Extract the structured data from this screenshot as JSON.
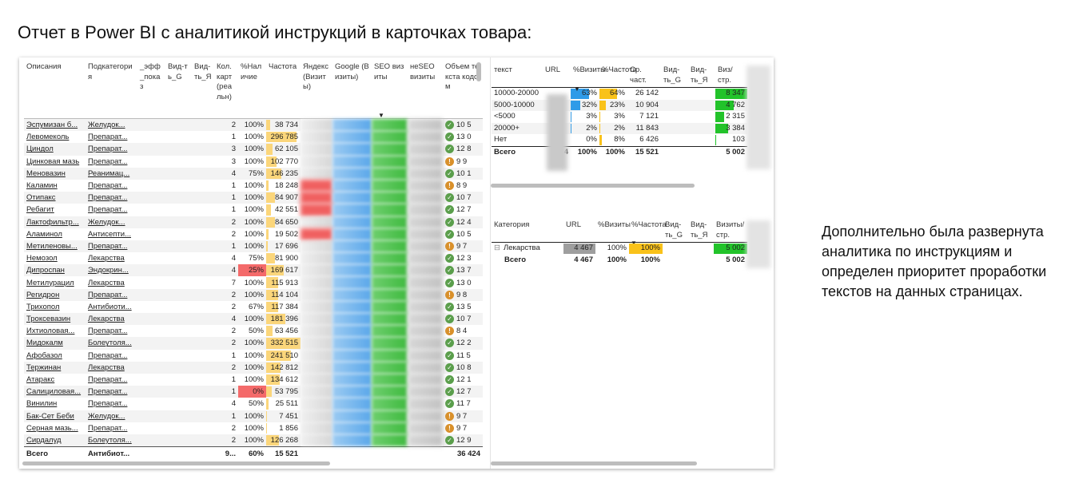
{
  "slide_title": "Отчет в Power BI с аналитикой инструкций в карточках товара:",
  "side_text": "Дополнительно была развернута аналитика по инструкциям и определен приоритет проработки текстов на данных страницах.",
  "main_table": {
    "columns": [
      "Описания",
      "Подкатегория",
      "_эфф_показ",
      "Вид-ть_G",
      "Вид-ть_Я",
      "Кол. карт (реальн)",
      "%Наличие",
      "Частота",
      "Яндекс (Визиты)",
      "Google (Визиты)",
      "SEO визиты",
      "неSEO визиты",
      "Объем текста кодом"
    ],
    "rows": [
      {
        "name": "Эспумизан б...",
        "sub": "Желудок...",
        "cnt": "2",
        "pct": "100%",
        "freq": "38 734",
        "freq_share": 0.12,
        "icon": "ok",
        "vol": "10 5"
      },
      {
        "name": "Левомеколь",
        "sub": "Препарат...",
        "cnt": "1",
        "pct": "100%",
        "freq": "296 785",
        "freq_share": 0.89,
        "icon": "ok",
        "vol": "13 0"
      },
      {
        "name": "Циндол",
        "sub": "Препарат...",
        "cnt": "3",
        "pct": "100%",
        "freq": "62 105",
        "freq_share": 0.19,
        "icon": "ok",
        "vol": "12 8"
      },
      {
        "name": "Цинковая мазь",
        "sub": "Препарат...",
        "cnt": "3",
        "pct": "100%",
        "freq": "102 770",
        "freq_share": 0.31,
        "icon": "warn",
        "vol": "9 9"
      },
      {
        "name": "Меновазин",
        "sub": "Реанимац...",
        "cnt": "4",
        "pct": "75%",
        "freq": "146 235",
        "freq_share": 0.44,
        "icon": "ok",
        "vol": "10 1"
      },
      {
        "name": "Каламин",
        "sub": "Препарат...",
        "cnt": "1",
        "pct": "100%",
        "freq": "18 248",
        "freq_share": 0.06,
        "icon": "warn",
        "vol": "8 9"
      },
      {
        "name": "Отипакс",
        "sub": "Препарат...",
        "cnt": "1",
        "pct": "100%",
        "freq": "84 907",
        "freq_share": 0.26,
        "icon": "ok",
        "vol": "10 7"
      },
      {
        "name": "Ребагит",
        "sub": "Препарат...",
        "cnt": "1",
        "pct": "100%",
        "freq": "42 551",
        "freq_share": 0.13,
        "icon": "ok",
        "vol": "12 7"
      },
      {
        "name": "Лактофильтр...",
        "sub": "Желудок...",
        "cnt": "2",
        "pct": "100%",
        "freq": "84 650",
        "freq_share": 0.26,
        "icon": "ok",
        "vol": "12 4"
      },
      {
        "name": "Аламинол",
        "sub": "Антисепти...",
        "cnt": "2",
        "pct": "100%",
        "freq": "19 502",
        "freq_share": 0.06,
        "icon": "ok",
        "vol": "10 5"
      },
      {
        "name": "Метиленовы...",
        "sub": "Препарат...",
        "cnt": "1",
        "pct": "100%",
        "freq": "17 696",
        "freq_share": 0.05,
        "icon": "warn",
        "vol": "9 7"
      },
      {
        "name": "Немозол",
        "sub": "Лекарства",
        "cnt": "4",
        "pct": "75%",
        "freq": "81 900",
        "freq_share": 0.25,
        "icon": "ok",
        "vol": "12 3"
      },
      {
        "name": "Дипроспан",
        "sub": "Эндокрин...",
        "cnt": "4",
        "pct": "25%",
        "freq": "169 617",
        "freq_share": 0.51,
        "icon": "ok",
        "vol": "13 7",
        "pct_red": true
      },
      {
        "name": "Метилурацил",
        "sub": "Лекарства",
        "cnt": "7",
        "pct": "100%",
        "freq": "115 913",
        "freq_share": 0.35,
        "icon": "ok",
        "vol": "13 0"
      },
      {
        "name": "Регидрон",
        "sub": "Препарат...",
        "cnt": "2",
        "pct": "100%",
        "freq": "114 104",
        "freq_share": 0.34,
        "icon": "warn",
        "vol": "9 8"
      },
      {
        "name": "Трихопол",
        "sub": "Антибиоти...",
        "cnt": "2",
        "pct": "67%",
        "freq": "117 384",
        "freq_share": 0.35,
        "icon": "ok",
        "vol": "13 5"
      },
      {
        "name": "Троксевазин",
        "sub": "Лекарства",
        "cnt": "4",
        "pct": "100%",
        "freq": "181 396",
        "freq_share": 0.55,
        "icon": "ok",
        "vol": "10 7"
      },
      {
        "name": "Ихтиоловая...",
        "sub": "Препарат...",
        "cnt": "2",
        "pct": "50%",
        "freq": "63 456",
        "freq_share": 0.19,
        "icon": "warn",
        "vol": "8 4"
      },
      {
        "name": "Мидокалм",
        "sub": "Болеутоля...",
        "cnt": "2",
        "pct": "100%",
        "freq": "332 515",
        "freq_share": 1.0,
        "icon": "ok",
        "vol": "12 2"
      },
      {
        "name": "Афобазол",
        "sub": "Препарат...",
        "cnt": "1",
        "pct": "100%",
        "freq": "241 510",
        "freq_share": 0.73,
        "icon": "ok",
        "vol": "11 5"
      },
      {
        "name": "Тержинан",
        "sub": "Лекарства",
        "cnt": "2",
        "pct": "100%",
        "freq": "142 812",
        "freq_share": 0.43,
        "icon": "ok",
        "vol": "10 8"
      },
      {
        "name": "Атаракс",
        "sub": "Препарат...",
        "cnt": "1",
        "pct": "100%",
        "freq": "134 612",
        "freq_share": 0.4,
        "icon": "ok",
        "vol": "12 1"
      },
      {
        "name": "Салициловая...",
        "sub": "Препарат...",
        "cnt": "1",
        "pct": "0%",
        "freq": "53 795",
        "freq_share": 0.16,
        "icon": "ok",
        "vol": "12 7",
        "pct_red": true
      },
      {
        "name": "Винилин",
        "sub": "Препарат...",
        "cnt": "4",
        "pct": "50%",
        "freq": "25 511",
        "freq_share": 0.08,
        "icon": "ok",
        "vol": "11 7"
      },
      {
        "name": "Бак-Сет Беби",
        "sub": "Желудок...",
        "cnt": "1",
        "pct": "100%",
        "freq": "7 451",
        "freq_share": 0.02,
        "icon": "warn",
        "vol": "9 7"
      },
      {
        "name": "Серная мазь...",
        "sub": "Препарат...",
        "cnt": "2",
        "pct": "100%",
        "freq": "1 856",
        "freq_share": 0.01,
        "icon": "warn",
        "vol": "9 7"
      },
      {
        "name": "Сирдалуд",
        "sub": "Болеутоля...",
        "cnt": "2",
        "pct": "100%",
        "freq": "126 268",
        "freq_share": 0.38,
        "icon": "ok",
        "vol": "12 9"
      }
    ],
    "total": {
      "name": "Всего",
      "sub": "Антибиот...",
      "cnt": "9...",
      "pct": "60%",
      "freq": "15 521",
      "vol": "36 424"
    }
  },
  "text_table": {
    "columns": [
      "текст",
      "URL",
      "%Визиты",
      "%Частота",
      "Ср. част.",
      "Вид-ть_G",
      "Вид-ть_Я",
      "Виз/стр."
    ],
    "rows": [
      {
        "label": "10000-20000",
        "visits": "63%",
        "visits_share": 0.63,
        "freq": "64%",
        "freq_share": 0.64,
        "avg": "26 142",
        "perpage": "8 347",
        "perpage_share": 1.0
      },
      {
        "label": "5000-10000",
        "visits": "32%",
        "visits_share": 0.32,
        "freq": "23%",
        "freq_share": 0.23,
        "avg": "10 904",
        "perpage": "4 762",
        "perpage_share": 0.57
      },
      {
        "label": "<5000",
        "visits": "3%",
        "visits_share": 0.03,
        "freq": "3%",
        "freq_share": 0.03,
        "avg": "7 121",
        "perpage": "2 315",
        "perpage_share": 0.28
      },
      {
        "label": "20000+",
        "visits": "2%",
        "visits_share": 0.02,
        "freq": "2%",
        "freq_share": 0.02,
        "avg": "11 843",
        "perpage": "3 384",
        "perpage_share": 0.41
      },
      {
        "label": "Нет",
        "visits": "0%",
        "visits_share": 0.0,
        "freq": "8%",
        "freq_share": 0.08,
        "avg": "6 426",
        "perpage": "103",
        "perpage_share": 0.01
      }
    ],
    "total": {
      "label": "Всего",
      "url": "4",
      "visits": "100%",
      "freq": "100%",
      "avg": "15 521",
      "perpage": "5 002"
    }
  },
  "category_table": {
    "columns": [
      "Категория",
      "URL",
      "%Визиты",
      "%Частота",
      "Вид-ть_G",
      "Вид-ть_Я",
      "Визиты/стр."
    ],
    "rows": [
      {
        "label": "Лекарства",
        "expand": "⊟",
        "url": "4 467",
        "visits": "100%",
        "freq": "100%",
        "perpage": "5 002"
      }
    ],
    "total": {
      "label": "Всего",
      "url": "4 467",
      "visits": "100%",
      "freq": "100%",
      "perpage": "5 002"
    }
  },
  "colors": {
    "blue": "#2f9be8",
    "yellow": "#f9c21a",
    "green": "#22c32a",
    "red": "#f46a6a",
    "grey": "#9e9e9e"
  }
}
